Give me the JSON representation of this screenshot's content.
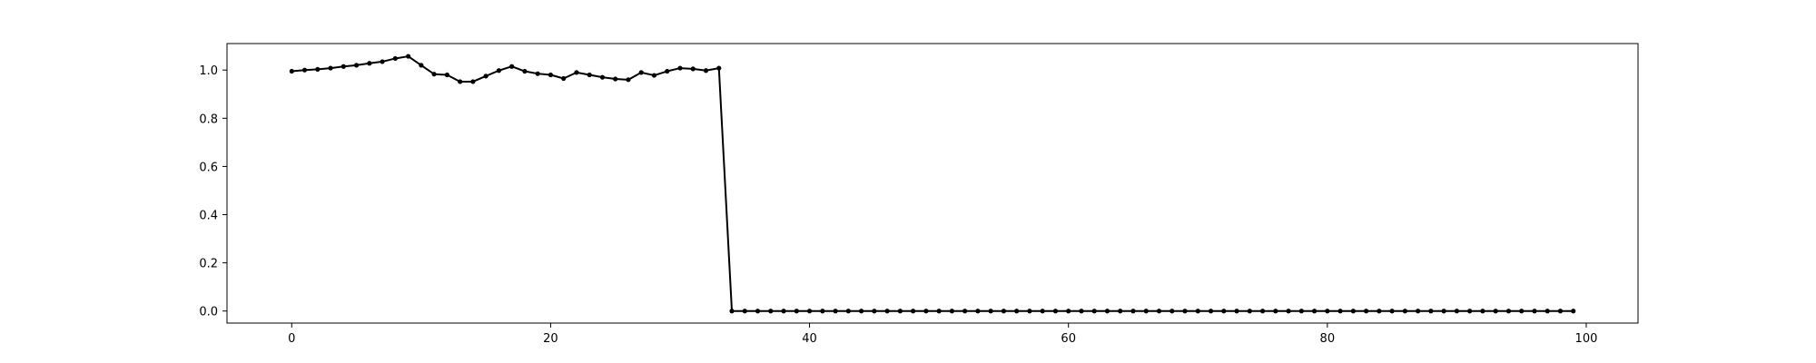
{
  "chart_data": {
    "type": "line",
    "title": "",
    "xlabel": "",
    "ylabel": "",
    "xlim": [
      -5,
      104
    ],
    "ylim": [
      -0.05,
      1.11
    ],
    "x_ticks": [
      0,
      20,
      40,
      60,
      80,
      100
    ],
    "x_tick_labels": [
      "0",
      "20",
      "40",
      "60",
      "80",
      "100"
    ],
    "y_ticks": [
      0.0,
      0.2,
      0.4,
      0.6,
      0.8,
      1.0
    ],
    "y_tick_labels": [
      "0.0",
      "0.2",
      "0.4",
      "0.6",
      "0.8",
      "1.0"
    ],
    "grid": false,
    "series": [
      {
        "color": "#000000",
        "marker": "circle",
        "x": [
          0,
          1,
          2,
          3,
          4,
          5,
          6,
          7,
          8,
          9,
          10,
          11,
          12,
          13,
          14,
          15,
          16,
          17,
          18,
          19,
          20,
          21,
          22,
          23,
          24,
          25,
          26,
          27,
          28,
          29,
          30,
          31,
          32,
          33,
          34,
          35,
          36,
          37,
          38,
          39,
          40,
          41,
          42,
          43,
          44,
          45,
          46,
          47,
          48,
          49,
          50,
          51,
          52,
          53,
          54,
          55,
          56,
          57,
          58,
          59,
          60,
          61,
          62,
          63,
          64,
          65,
          66,
          67,
          68,
          69,
          70,
          71,
          72,
          73,
          74,
          75,
          76,
          77,
          78,
          79,
          80,
          81,
          82,
          83,
          84,
          85,
          86,
          87,
          88,
          89,
          90,
          91,
          92,
          93,
          94,
          95,
          96,
          97,
          98,
          99
        ],
        "y": [
          0.995,
          1.0,
          1.003,
          1.008,
          1.015,
          1.02,
          1.028,
          1.035,
          1.048,
          1.057,
          1.02,
          0.983,
          0.98,
          0.952,
          0.952,
          0.975,
          0.998,
          1.015,
          0.995,
          0.985,
          0.98,
          0.965,
          0.99,
          0.98,
          0.97,
          0.963,
          0.96,
          0.99,
          0.978,
          0.995,
          1.008,
          1.005,
          0.998,
          1.008,
          0,
          0,
          0,
          0,
          0,
          0,
          0,
          0,
          0,
          0,
          0,
          0,
          0,
          0,
          0,
          0,
          0,
          0,
          0,
          0,
          0,
          0,
          0,
          0,
          0,
          0,
          0,
          0,
          0,
          0,
          0,
          0,
          0,
          0,
          0,
          0,
          0,
          0,
          0,
          0,
          0,
          0,
          0,
          0,
          0,
          0,
          0,
          0,
          0,
          0,
          0,
          0,
          0,
          0,
          0,
          0,
          0,
          0,
          0,
          0,
          0,
          0,
          0,
          0,
          0,
          0
        ]
      }
    ]
  }
}
